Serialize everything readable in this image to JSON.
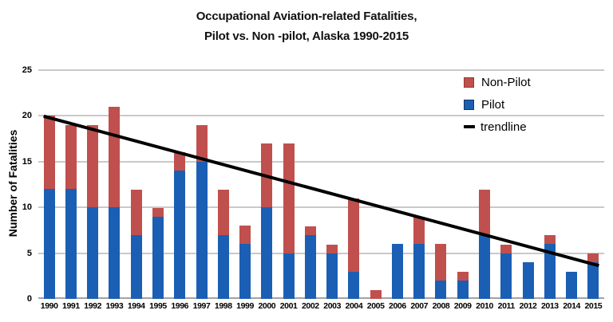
{
  "title": {
    "line1": "Occupational Aviation-related Fatalities,",
    "line2": "Pilot vs. Non -pilot, Alaska 1990-2015"
  },
  "chart_data": {
    "type": "bar",
    "stacked": true,
    "title": "Occupational Aviation-related Fatalities, Pilot vs. Non-pilot, Alaska 1990-2015",
    "xlabel": "",
    "ylabel": "Number of Fatalities",
    "ylim": [
      0,
      25
    ],
    "yticks": [
      0,
      5,
      10,
      15,
      20,
      25
    ],
    "grid": true,
    "categories": [
      "1990",
      "1991",
      "1992",
      "1993",
      "1994",
      "1995",
      "1996",
      "1997",
      "1998",
      "1999",
      "2000",
      "2001",
      "2002",
      "2003",
      "2004",
      "2005",
      "2006",
      "2007",
      "2008",
      "2009",
      "2010",
      "2011",
      "2012",
      "2013",
      "2014",
      "2015"
    ],
    "series": [
      {
        "name": "Pilot",
        "color": "#1a5fb4",
        "values": [
          12,
          12,
          10,
          10,
          7,
          9,
          14,
          15,
          7,
          6,
          10,
          5,
          7,
          5,
          3,
          0,
          6,
          6,
          2,
          2,
          7,
          5,
          4,
          6,
          3,
          4
        ]
      },
      {
        "name": "Non-Pilot",
        "color": "#c0504d",
        "values": [
          8,
          7,
          9,
          11,
          5,
          1,
          2,
          4,
          5,
          2,
          7,
          12,
          1,
          1,
          8,
          1,
          0,
          3,
          4,
          1,
          5,
          1,
          0,
          1,
          0,
          1
        ]
      }
    ],
    "trendline": {
      "label": "trendline",
      "color": "#000000",
      "y_start": 19.8,
      "y_end": 3.8
    },
    "legend_position": "top-right-inside",
    "legend": [
      {
        "label": "Non-Pilot",
        "swatch": "square",
        "fill": "#c0504d",
        "border": "#953735"
      },
      {
        "label": "Pilot",
        "swatch": "square",
        "fill": "#1a5fb4",
        "border": "#17375e"
      },
      {
        "label": "trendline",
        "swatch": "line",
        "fill": "#000000",
        "border": ""
      }
    ],
    "colors": {
      "background": "#ffffff",
      "gridline": "#c9c9c9",
      "axis_baseline": "#a3a3a3",
      "text": "#000000"
    }
  }
}
